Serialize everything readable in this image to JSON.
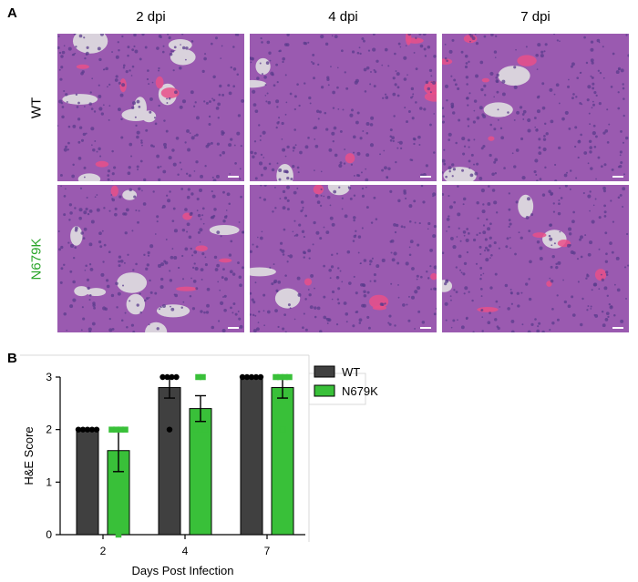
{
  "figure": {
    "panel_a_label": "A",
    "panel_b_label": "B",
    "columns": [
      "2 dpi",
      "4 dpi",
      "7 dpi"
    ],
    "rows": [
      {
        "label": "WT",
        "color": "#000000"
      },
      {
        "label": "N679K",
        "color": "#2aa52a"
      }
    ]
  },
  "colors": {
    "tissue_base": "#9a5ab0",
    "tissue_dark": "#5a3c8c",
    "rbc_pink": "#e8508a",
    "lumen": "#d9d2dc",
    "wt_bar": "#404040",
    "n679k_bar": "#39c039"
  },
  "chart_data": {
    "type": "bar",
    "categories": [
      "2",
      "4",
      "7"
    ],
    "xlabel": "Days Post Infection",
    "ylabel": "H&E Score",
    "ylim": [
      0,
      3
    ],
    "yticks": [
      0,
      1,
      2,
      3
    ],
    "legend_position": "top-right",
    "series": [
      {
        "name": "WT",
        "color": "#404040",
        "values": [
          2.0,
          2.8,
          3.0
        ],
        "sem": [
          0,
          0.2,
          0
        ],
        "points": [
          [
            2,
            2,
            2,
            2,
            2
          ],
          [
            3,
            3,
            3,
            3,
            2
          ],
          [
            3,
            3,
            3,
            3,
            3
          ]
        ]
      },
      {
        "name": "N679K",
        "color": "#39c039",
        "values": [
          1.6,
          2.4,
          2.8
        ],
        "sem": [
          0.4,
          0.245,
          0.2
        ],
        "points": [
          [
            2,
            2,
            2,
            2,
            0
          ],
          [
            3,
            3,
            2,
            2,
            2
          ],
          [
            3,
            3,
            3,
            3,
            2
          ]
        ]
      }
    ]
  }
}
